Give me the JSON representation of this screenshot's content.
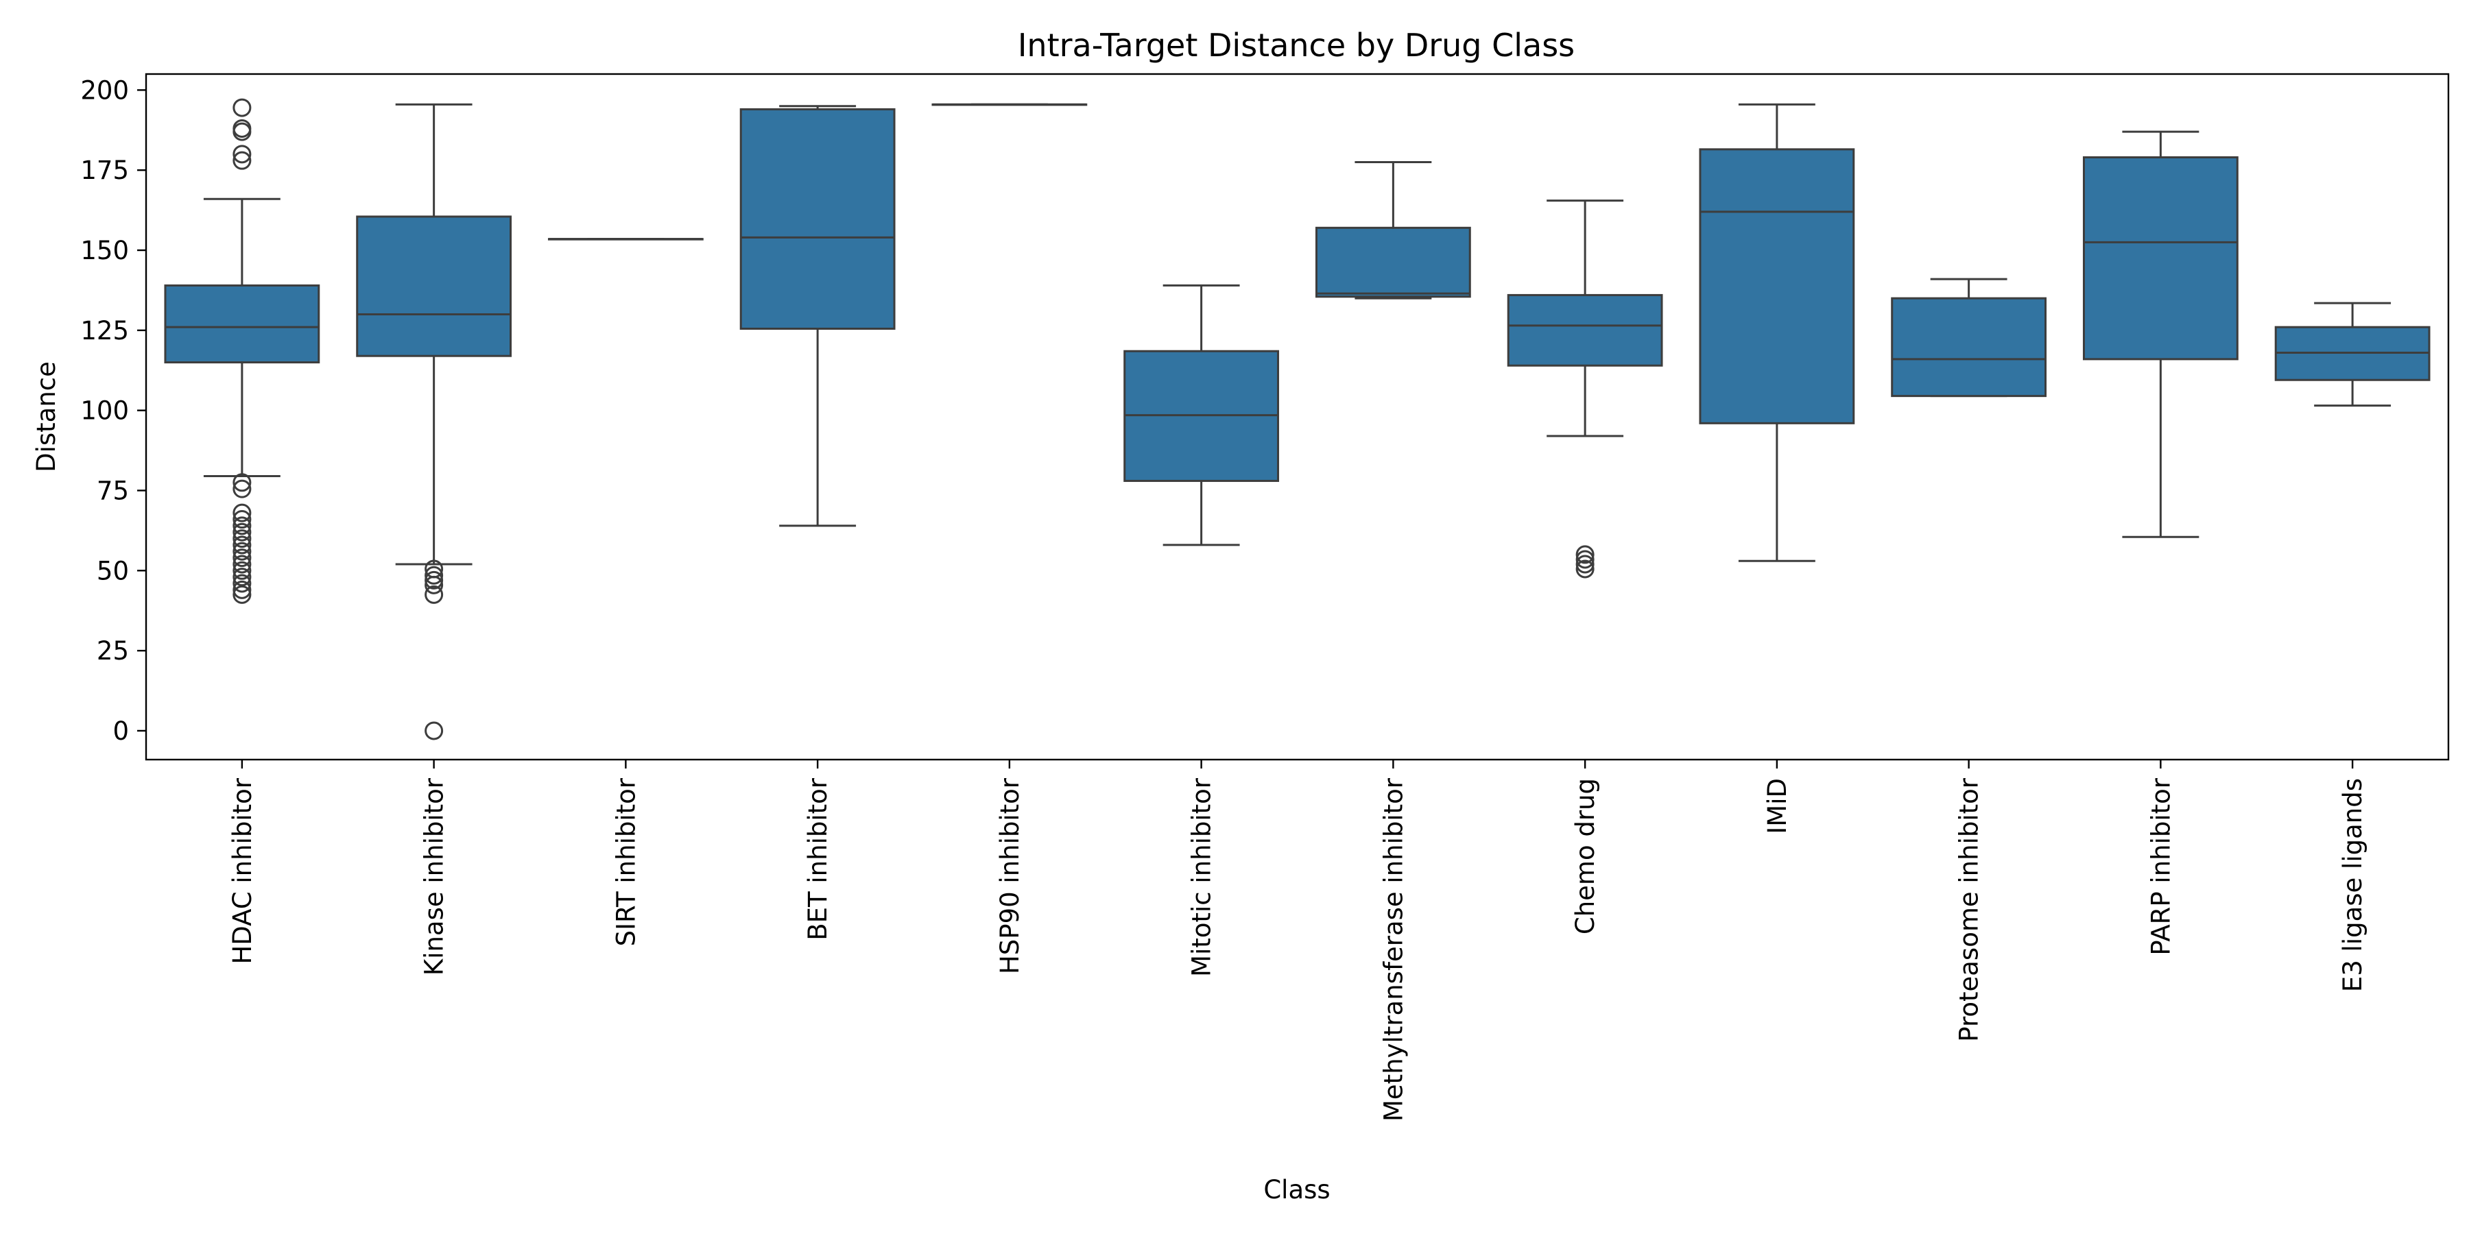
{
  "chart_data": {
    "type": "box",
    "title": "Intra-Target Distance by Drug Class",
    "xlabel": "Class",
    "ylabel": "Distance",
    "ylim": [
      -9,
      205
    ],
    "yticks": [
      0,
      25,
      50,
      75,
      100,
      125,
      150,
      175,
      200
    ],
    "grid": false,
    "box_color": "#3274a1",
    "line_color": "#3d3d3d",
    "categories": [
      "HDAC inhibitor",
      "Kinase inhibitor",
      "SIRT inhibitor",
      "BET inhibitor",
      "HSP90 inhibitor",
      "Mitotic inhibitor",
      "Methyltransferase inhibitor",
      "Chemo drug",
      "IMiD",
      "Proteasome inhibitor",
      "PARP inhibitor",
      "E3 ligase ligands"
    ],
    "boxes": [
      {
        "whislo": 79.5,
        "q1": 115,
        "med": 126,
        "q3": 139,
        "whishi": 166,
        "fliers": [
          42.5,
          44,
          46,
          48,
          50,
          52,
          54,
          56,
          58,
          60,
          62,
          64,
          66,
          68,
          75.5,
          77.5,
          178,
          180,
          187,
          188,
          194.5
        ]
      },
      {
        "whislo": 52,
        "q1": 117,
        "med": 130,
        "q3": 160.5,
        "whishi": 195.5,
        "fliers": [
          0,
          42.5,
          45.5,
          47,
          48.5,
          50.5
        ]
      },
      {
        "whislo": 153.5,
        "q1": 153.5,
        "med": 153.5,
        "q3": 153.5,
        "whishi": 153.5,
        "fliers": []
      },
      {
        "whislo": 64,
        "q1": 125.5,
        "med": 154,
        "q3": 194,
        "whishi": 195,
        "fliers": []
      },
      {
        "whislo": 195.5,
        "q1": 195.5,
        "med": 195.5,
        "q3": 195.5,
        "whishi": 195.5,
        "fliers": []
      },
      {
        "whislo": 58,
        "q1": 78,
        "med": 98.5,
        "q3": 118.5,
        "whishi": 139,
        "fliers": []
      },
      {
        "whislo": 135,
        "q1": 135.5,
        "med": 136.5,
        "q3": 157,
        "whishi": 177.5,
        "fliers": []
      },
      {
        "whislo": 92,
        "q1": 114,
        "med": 126.5,
        "q3": 136,
        "whishi": 165.5,
        "fliers": [
          50.5,
          52,
          53.5,
          55
        ]
      },
      {
        "whislo": 53,
        "q1": 96,
        "med": 162,
        "q3": 181.5,
        "whishi": 195.5,
        "fliers": []
      },
      {
        "whislo": 104.5,
        "q1": 104.5,
        "med": 116,
        "q3": 135,
        "whishi": 141,
        "fliers": []
      },
      {
        "whislo": 60.5,
        "q1": 116,
        "med": 152.5,
        "q3": 179,
        "whishi": 187,
        "fliers": []
      },
      {
        "whislo": 101.5,
        "q1": 109.5,
        "med": 118,
        "q3": 126,
        "whishi": 133.5,
        "fliers": []
      }
    ]
  }
}
